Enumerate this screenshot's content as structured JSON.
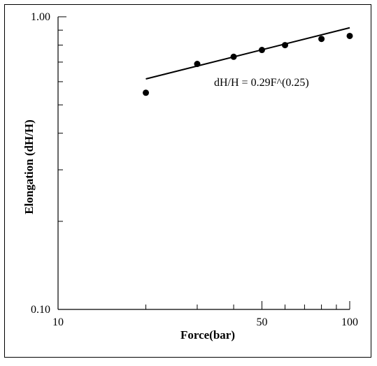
{
  "chart_data": {
    "type": "scatter",
    "xlabel": "Force(bar)",
    "ylabel": "Elongation   (dH/H)",
    "x_scale": "log",
    "y_scale": "log",
    "xlim": [
      10,
      100
    ],
    "ylim": [
      0.1,
      1.0
    ],
    "x_tick_labels": [
      "10",
      "50",
      "100"
    ],
    "y_tick_labels": [
      "1.00",
      "0.10"
    ],
    "grid": false,
    "series": [
      {
        "x": [
          20,
          30,
          40,
          50,
          60,
          80,
          100
        ],
        "y": [
          0.55,
          0.69,
          0.73,
          0.77,
          0.8,
          0.84,
          0.86
        ]
      }
    ],
    "fit": {
      "equation": "dH/H = 0.29F^(0.25)",
      "coefficient": 0.29,
      "exponent": 0.25,
      "x_range": [
        20,
        100
      ]
    }
  }
}
